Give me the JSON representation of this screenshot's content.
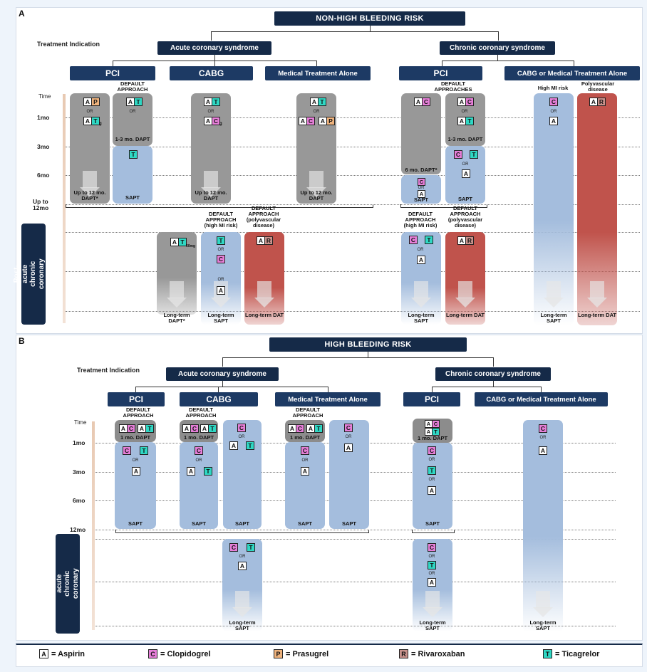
{
  "panelA": {
    "letter": "A",
    "title": "NON-HIGH BLEEDING RISK",
    "treatment_indication": "Treatment Indication",
    "acs": "Acute coronary syndrome",
    "ccs": "Chronic coronary syndrome",
    "pci": "PCI",
    "cabg": "CABG",
    "mta": "Medical Treatment Alone",
    "pci2": "PCI",
    "cabg_mta": "CABG or Medical Treatment Alone",
    "times": [
      "Time",
      "1mo",
      "3mo",
      "6mo",
      "Up to 12mo"
    ],
    "post_acute": "Post-acute chronic coronary syndrome",
    "default_approach": "DEFAULT APPROACH",
    "default_approaches": "DEFAULT APPROACHES",
    "dapt_1_3": "1-3 mo. DAPT",
    "dapt_1_3b": "1-3 mo. DAPT",
    "dapt_6": "6 mo. DAPT*",
    "upto12_star": "Up to 12 mo. DAPT*",
    "upto12_a": "Up to 12 mo. DAPT",
    "upto12_b": "Up to 12 mo. DAPT",
    "sapt": "SAPT",
    "high_mi_risk": "High MI risk",
    "polyvascular": "Polyvascular disease",
    "def_high_mi": "DEFAULT APPROACH (high MI risk)",
    "def_poly": "DEFAULT APPROACH (polyvascular disease)",
    "lt_dapt": "Long-term DAPT*",
    "lt_sapt": "Long-term SAPT",
    "lt_dat": "Long-term DAT",
    "dose": "60mg",
    "g": "g",
    "or": "OR"
  },
  "panelB": {
    "letter": "B",
    "title": "HIGH BLEEDING RISK",
    "treatment_indication": "Treatment Indication",
    "acs": "Acute coronary syndrome",
    "ccs": "Chronic coronary syndrome",
    "pci": "PCI",
    "cabg": "CABG",
    "mta": "Medical Treatment Alone",
    "pci2": "PCI",
    "cabg_mta": "CABG or Medical Treatment Alone",
    "times": [
      "Time",
      "1mo",
      "3mo",
      "6mo",
      "12mo"
    ],
    "post_acute": "Post-acute chronic coronary syndrome",
    "default_approach": "DEFAULT APPROACH",
    "dapt1": "1 mo. DAPT",
    "sapt": "SAPT",
    "lt_sapt": "Long-term SAPT",
    "or": "OR"
  },
  "legend": [
    {
      "code": "A",
      "name": "= Aspirin"
    },
    {
      "code": "C",
      "name": "= Clopidogrel"
    },
    {
      "code": "P",
      "name": "= Prasugrel"
    },
    {
      "code": "R",
      "name": "= Rivaroxaban"
    },
    {
      "code": "T",
      "name": "= Ticagrelor"
    }
  ],
  "colors": {
    "navy": "#152a48",
    "aspirin": "#ffffff",
    "clopidogrel": "#e77fd9",
    "prasugrel": "#efb37d",
    "rivaroxaban": "#c9928c",
    "ticagrelor": "#2fd8c4",
    "dapt_gray": "#989898",
    "sapt_blue": "#a4bddd",
    "dat_red": "#c0534c"
  }
}
